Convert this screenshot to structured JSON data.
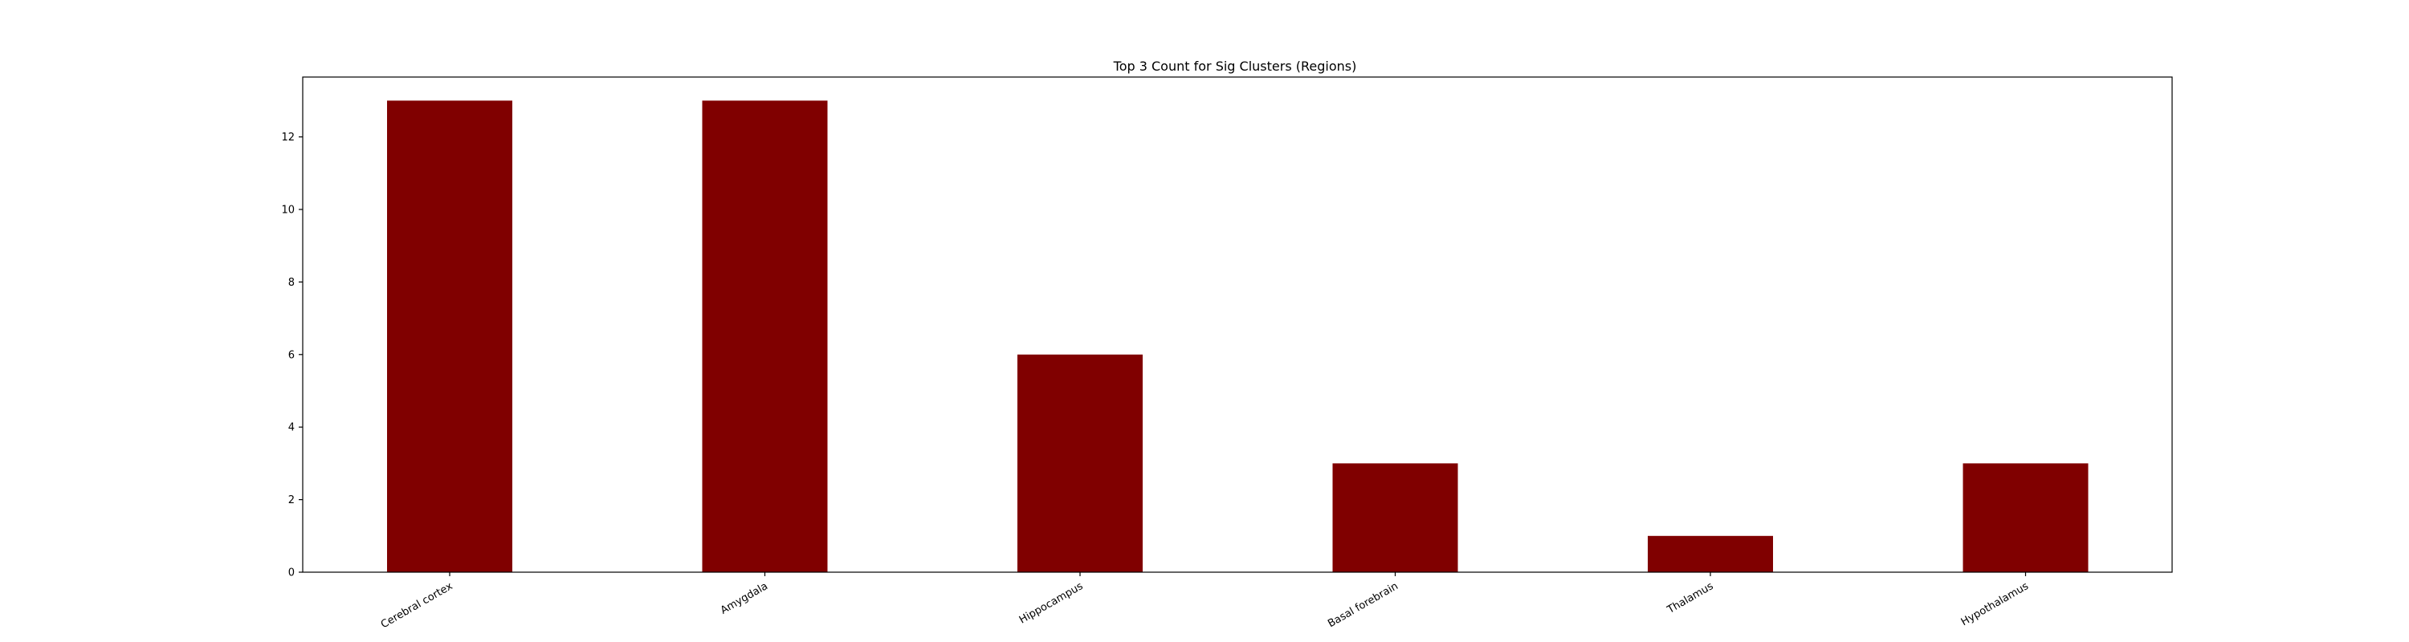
{
  "colors": {
    "bar": "#800000",
    "axis": "#000000",
    "background": "#ffffff"
  },
  "chart_data": {
    "type": "bar",
    "title": "Top 3 Count for Sig Clusters (Regions)",
    "xlabel": "",
    "ylabel": "",
    "categories": [
      "Cerebral cortex",
      "Amygdala",
      "Hippocampus",
      "Basal forebrain",
      "Thalamus",
      "Hypothalamus"
    ],
    "values": [
      13,
      13,
      6,
      3,
      1,
      3
    ],
    "ylim": [
      0,
      13.65
    ],
    "yticks": [
      0,
      2,
      4,
      6,
      8,
      10,
      12
    ],
    "grid": false,
    "legend": "none"
  }
}
